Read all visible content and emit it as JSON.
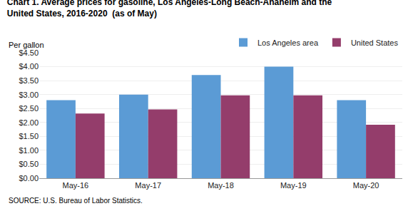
{
  "chart_data": {
    "type": "bar",
    "title": "Chart 1. Average prices for gasoline, Los Angeles-Long Beach-Anaheim and the\nUnited States, 2016-2020  (as of May)",
    "ylabel": "Per gallon",
    "source": "SOURCE: U.S. Bureau of Labor Statistics.",
    "categories": [
      "May-16",
      "May-17",
      "May-18",
      "May-19",
      "May-20"
    ],
    "series": [
      {
        "name": "Los Angeles area",
        "color": "#5B9BD5",
        "values": [
          2.8,
          3.0,
          3.7,
          4.0,
          2.8
        ]
      },
      {
        "name": "United States",
        "color": "#943D6B",
        "values": [
          2.32,
          2.47,
          2.97,
          2.97,
          1.92
        ]
      }
    ],
    "ylim": [
      0,
      4.5
    ],
    "yticks": [
      {
        "value": 0,
        "label": "$0.00"
      },
      {
        "value": 0.5,
        "label": "$0.50"
      },
      {
        "value": 1,
        "label": "$1.00"
      },
      {
        "value": 1.5,
        "label": "$1.50"
      },
      {
        "value": 2,
        "label": "$2.00"
      },
      {
        "value": 2.5,
        "label": "$2.50"
      },
      {
        "value": 3,
        "label": "$3.00"
      },
      {
        "value": 3.5,
        "label": "$3.50"
      },
      {
        "value": 4,
        "label": "$4.00"
      },
      {
        "value": 4.5,
        "label": "$4.50"
      }
    ],
    "grid": true,
    "legend": "upper right"
  }
}
